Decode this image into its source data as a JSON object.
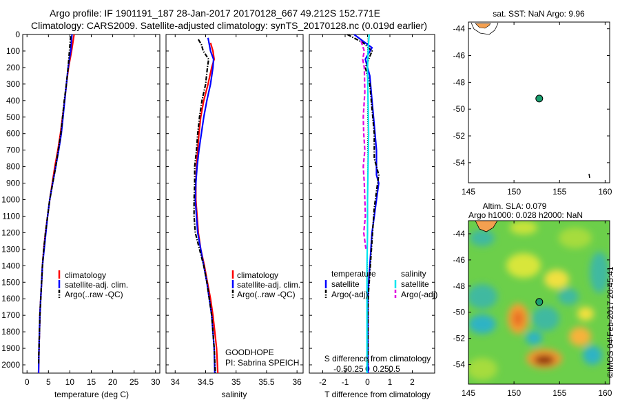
{
  "header": {
    "line1": "Argo profile: IF 1901191_187 28-Jan-2017 20170128_667 49.212S 152.771E",
    "line2": "Climatology: CARS2009. Satellite-adjusted climatology: synTS_20170128.nc (0.019d earlier)"
  },
  "colors": {
    "climatology": "#ff0000",
    "satellite": "#0000ff",
    "argo": "#000000",
    "sal_satellite": "#00e5ee",
    "sal_argo": "#e000e0",
    "marker": "#1a9e6e"
  },
  "panel_temperature": {
    "xlabel": "temperature (deg C)",
    "legend": [
      "climatology",
      "satellite-adj. clim.",
      "Argo(..raw -QC)"
    ]
  },
  "panel_salinity": {
    "xlabel": "salinity",
    "legend": [
      "climatology",
      "satellite-adj. clim.",
      "Argo(..raw -QC)"
    ],
    "note_line1": "GOODHOPE",
    "note_line2": "PI: Sabrina SPEICH"
  },
  "panel_difference": {
    "top_label": "S difference from climatology",
    "xlabel": "T difference from climatology",
    "legend_temp_title": "temperature",
    "legend_sal_title": "salinity",
    "legend_items": [
      "satellite",
      "Argo(-adj)",
      "satellite",
      "Argo(-adj)"
    ]
  },
  "map_sst": {
    "title": "sat. SST: NaN  Argo: 9.96"
  },
  "map_sla": {
    "title_line1": "Altim. SLA: 0.079",
    "title_line2": "Argo h1000: 0.028 h2000: NaN",
    "stamp": "©IMOS 04-Feb-2017 20:45:41"
  },
  "chart_data": [
    {
      "type": "line",
      "id": "temperature-profile",
      "xlabel": "temperature (deg C)",
      "ylabel": "",
      "xlim": [
        -1,
        31
      ],
      "ylim": [
        0,
        2050
      ],
      "y_reversed": true,
      "xticks": [
        0,
        5,
        10,
        15,
        20,
        25,
        30
      ],
      "yticks": [
        0,
        100,
        200,
        300,
        400,
        500,
        600,
        700,
        800,
        900,
        1000,
        1100,
        1200,
        1300,
        1400,
        1500,
        1600,
        1700,
        1800,
        1900,
        2000
      ],
      "series": [
        {
          "name": "climatology",
          "style": "solid",
          "color": "#ff0000",
          "points": [
            [
              11.0,
              0
            ],
            [
              10.4,
              100
            ],
            [
              9.7,
              200
            ],
            [
              9.2,
              300
            ],
            [
              8.8,
              400
            ],
            [
              8.3,
              500
            ],
            [
              7.8,
              600
            ],
            [
              7.2,
              700
            ],
            [
              6.5,
              800
            ],
            [
              5.9,
              900
            ],
            [
              5.3,
              1000
            ],
            [
              4.8,
              1100
            ],
            [
              4.3,
              1200
            ],
            [
              3.9,
              1300
            ],
            [
              3.6,
              1400
            ],
            [
              3.4,
              1500
            ],
            [
              3.2,
              1600
            ],
            [
              3.0,
              1700
            ],
            [
              2.9,
              1800
            ],
            [
              2.8,
              1900
            ],
            [
              2.7,
              2050
            ]
          ]
        },
        {
          "name": "satellite-adj. clim.",
          "style": "solid",
          "color": "#0000ff",
          "points": [
            [
              10.5,
              0
            ],
            [
              10.2,
              100
            ],
            [
              9.6,
              200
            ],
            [
              9.2,
              300
            ],
            [
              8.8,
              400
            ],
            [
              8.4,
              500
            ],
            [
              8.0,
              600
            ],
            [
              7.4,
              700
            ],
            [
              6.7,
              800
            ],
            [
              6.0,
              900
            ],
            [
              5.3,
              1000
            ],
            [
              4.8,
              1100
            ],
            [
              4.4,
              1200
            ],
            [
              4.0,
              1300
            ],
            [
              3.6,
              1400
            ],
            [
              3.4,
              1500
            ],
            [
              3.2,
              1600
            ],
            [
              3.0,
              1700
            ],
            [
              2.9,
              1800
            ],
            [
              2.8,
              1900
            ],
            [
              2.7,
              2050
            ]
          ]
        },
        {
          "name": "Argo(..raw -QC)",
          "style": "dashdot",
          "color": "#000000",
          "points": [
            [
              10.2,
              10
            ],
            [
              9.9,
              100
            ],
            [
              9.6,
              200
            ],
            [
              9.2,
              300
            ],
            [
              8.7,
              400
            ],
            [
              8.3,
              500
            ],
            [
              7.9,
              600
            ],
            [
              7.3,
              700
            ],
            [
              6.7,
              800
            ],
            [
              6.0,
              900
            ],
            [
              5.3,
              1000
            ],
            [
              4.8,
              1100
            ],
            [
              4.3,
              1200
            ],
            [
              3.9,
              1300
            ],
            [
              3.6,
              1400
            ],
            [
              3.4,
              1500
            ],
            [
              3.2,
              1600
            ],
            [
              3.0,
              1700
            ],
            [
              2.9,
              1800
            ],
            [
              2.8,
              1900
            ],
            [
              2.7,
              2000
            ]
          ]
        }
      ]
    },
    {
      "type": "line",
      "id": "salinity-profile",
      "xlabel": "salinity",
      "xlim": [
        33.85,
        36.1
      ],
      "ylim": [
        0,
        2050
      ],
      "y_reversed": true,
      "xticks": [
        34,
        34.5,
        35,
        35.5,
        36
      ],
      "series": [
        {
          "name": "climatology",
          "style": "solid",
          "color": "#ff0000",
          "points": [
            [
              34.58,
              50
            ],
            [
              34.62,
              100
            ],
            [
              34.64,
              150
            ],
            [
              34.6,
              200
            ],
            [
              34.54,
              300
            ],
            [
              34.47,
              400
            ],
            [
              34.42,
              500
            ],
            [
              34.39,
              600
            ],
            [
              34.37,
              700
            ],
            [
              34.35,
              800
            ],
            [
              34.34,
              900
            ],
            [
              34.34,
              1000
            ],
            [
              34.36,
              1100
            ],
            [
              34.38,
              1200
            ],
            [
              34.42,
              1300
            ],
            [
              34.48,
              1400
            ],
            [
              34.53,
              1500
            ],
            [
              34.58,
              1600
            ],
            [
              34.62,
              1700
            ],
            [
              34.65,
              1800
            ],
            [
              34.68,
              1900
            ],
            [
              34.7,
              2050
            ]
          ]
        },
        {
          "name": "satellite-adj. clim.",
          "style": "solid",
          "color": "#0000ff",
          "points": [
            [
              34.54,
              20
            ],
            [
              34.58,
              100
            ],
            [
              34.63,
              150
            ],
            [
              34.62,
              200
            ],
            [
              34.58,
              300
            ],
            [
              34.52,
              400
            ],
            [
              34.47,
              500
            ],
            [
              34.43,
              600
            ],
            [
              34.39,
              700
            ],
            [
              34.36,
              800
            ],
            [
              34.34,
              900
            ],
            [
              34.33,
              1000
            ],
            [
              34.35,
              1100
            ],
            [
              34.37,
              1200
            ],
            [
              34.42,
              1300
            ],
            [
              34.47,
              1400
            ],
            [
              34.52,
              1500
            ],
            [
              34.56,
              1600
            ],
            [
              34.6,
              1700
            ],
            [
              34.62,
              1800
            ],
            [
              34.64,
              1900
            ],
            [
              34.65,
              2050
            ]
          ]
        },
        {
          "name": "Argo(..raw -QC)",
          "style": "dashdot",
          "color": "#000000",
          "points": [
            [
              34.38,
              30
            ],
            [
              34.43,
              60
            ],
            [
              34.46,
              100
            ],
            [
              34.55,
              150
            ],
            [
              34.53,
              200
            ],
            [
              34.5,
              300
            ],
            [
              34.44,
              400
            ],
            [
              34.4,
              500
            ],
            [
              34.37,
              600
            ],
            [
              34.35,
              700
            ],
            [
              34.32,
              800
            ],
            [
              34.32,
              900
            ],
            [
              34.31,
              1000
            ],
            [
              34.31,
              1100
            ],
            [
              34.33,
              1200
            ],
            [
              34.4,
              1300
            ],
            [
              34.47,
              1400
            ],
            [
              34.52,
              1500
            ],
            [
              34.56,
              1600
            ],
            [
              34.6,
              1700
            ],
            [
              34.62,
              1800
            ],
            [
              34.64,
              1900
            ],
            [
              34.66,
              2050
            ]
          ]
        }
      ]
    },
    {
      "type": "line",
      "id": "difference-profile",
      "xlabel": "T difference from climatology",
      "top_label": "S difference from climatology",
      "xlim_T": [
        -2.6,
        3
      ],
      "xticks_T": [
        -2,
        -1,
        0,
        1,
        2
      ],
      "xticks_S": [
        -0.5,
        -0.25,
        0,
        0.25,
        0.5
      ],
      "ylim": [
        0,
        2050
      ],
      "y_reversed": true,
      "series": [
        {
          "name": "temperature satellite",
          "style": "solid",
          "color": "#0000ff",
          "points": [
            [
              -0.6,
              0
            ],
            [
              0.2,
              80
            ],
            [
              -0.1,
              150
            ],
            [
              0.1,
              250
            ],
            [
              0.2,
              400
            ],
            [
              0.3,
              550
            ],
            [
              0.4,
              700
            ],
            [
              0.4,
              850
            ],
            [
              0.5,
              900
            ],
            [
              0.4,
              1000
            ],
            [
              0.3,
              1100
            ],
            [
              0.2,
              1200
            ],
            [
              0.15,
              1300
            ],
            [
              0.1,
              1400
            ],
            [
              0.05,
              1500
            ],
            [
              0.02,
              1600
            ],
            [
              0.02,
              1800
            ],
            [
              0.02,
              2050
            ]
          ]
        },
        {
          "name": "temperature Argo(-adj)",
          "style": "dashdot",
          "color": "#000000",
          "points": [
            [
              -0.9,
              0
            ],
            [
              -0.2,
              50
            ],
            [
              0.2,
              100
            ],
            [
              -0.1,
              200
            ],
            [
              0.1,
              300
            ],
            [
              0.2,
              450
            ],
            [
              0.3,
              600
            ],
            [
              0.3,
              750
            ],
            [
              0.5,
              850
            ],
            [
              0.4,
              950
            ],
            [
              0.3,
              1050
            ],
            [
              0.25,
              1150
            ],
            [
              0.2,
              1250
            ],
            [
              0.15,
              1350
            ],
            [
              0.1,
              1450
            ],
            [
              0.05,
              1550
            ],
            [
              0.02,
              1650
            ],
            [
              0.02,
              1800
            ],
            [
              0.02,
              2000
            ]
          ]
        },
        {
          "name": "salinity satellite",
          "style": "solid",
          "color": "#00e5ee",
          "points": [
            [
              0.03,
              0
            ],
            [
              0.01,
              100
            ],
            [
              0.0,
              200
            ],
            [
              0.01,
              400
            ],
            [
              0.02,
              600
            ],
            [
              0.01,
              800
            ],
            [
              0.0,
              1000
            ],
            [
              0.0,
              1200
            ],
            [
              -0.01,
              1400
            ],
            [
              -0.01,
              1600
            ],
            [
              -0.01,
              1800
            ],
            [
              -0.01,
              2050
            ]
          ]
        },
        {
          "name": "salinity Argo(-adj)",
          "style": "dash",
          "color": "#e000e0",
          "points": [
            [
              -0.12,
              40
            ],
            [
              -0.06,
              100
            ],
            [
              -0.09,
              150
            ],
            [
              -0.06,
              200
            ],
            [
              -0.05,
              350
            ],
            [
              -0.06,
              400
            ],
            [
              -0.08,
              500
            ],
            [
              -0.07,
              600
            ],
            [
              -0.05,
              700
            ],
            [
              -0.08,
              800
            ],
            [
              -0.06,
              900
            ],
            [
              -0.05,
              1000
            ],
            [
              -0.04,
              1100
            ],
            [
              -0.07,
              1200
            ],
            [
              -0.03,
              1300
            ]
          ]
        }
      ]
    },
    {
      "type": "scatter",
      "id": "map-sst",
      "title": "sat. SST: NaN  Argo: 9.96",
      "xlim": [
        145,
        160.5
      ],
      "ylim": [
        -55.5,
        -43.5
      ],
      "xticks": [
        145,
        150,
        155,
        160
      ],
      "yticks": [
        -44,
        -46,
        -48,
        -50,
        -52,
        -54
      ],
      "points": [
        [
          152.771,
          -49.212
        ]
      ]
    },
    {
      "type": "heatmap",
      "id": "map-sla",
      "title": "Altim. SLA: 0.079",
      "subtitle": "Argo h1000: 0.028 h2000: NaN",
      "xlim": [
        145,
        160.5
      ],
      "ylim": [
        -55.5,
        -43
      ],
      "xticks": [
        145,
        150,
        155,
        160
      ],
      "yticks": [
        -44,
        -46,
        -48,
        -50,
        -52,
        -54
      ],
      "points": [
        [
          152.771,
          -49.212
        ]
      ]
    }
  ]
}
